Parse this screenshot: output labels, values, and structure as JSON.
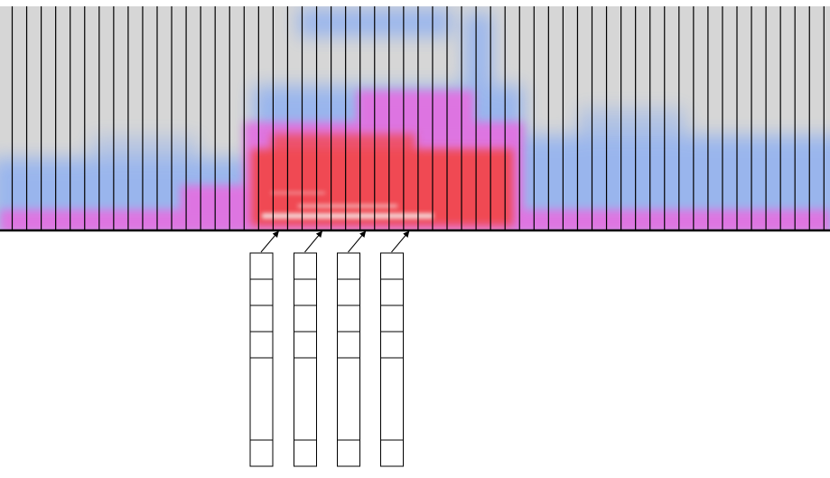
{
  "figure": {
    "spectrogram": {
      "background": "#d6d6d6",
      "palette": {
        "low": "#8fb0f2",
        "mid": "#e56ee0",
        "high": "#f04a52",
        "peak": "#f6e6e6"
      },
      "frame_count": 57
    },
    "feature_vectors": {
      "count": 4,
      "cells_per_vector": 6,
      "source_frames": [
        18,
        21,
        24,
        27
      ]
    },
    "colors": {
      "frame_line": "#000000",
      "vector_border": "#000000",
      "vector_fill": "#ffffff",
      "arrow": "#000000"
    }
  }
}
